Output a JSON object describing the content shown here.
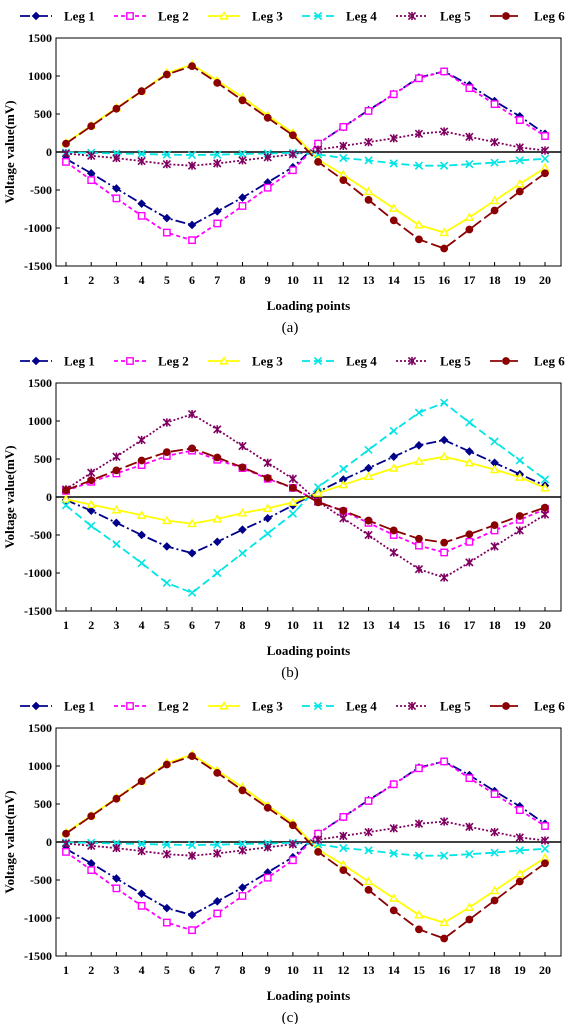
{
  "chart_data": [
    {
      "type": "line",
      "panel_label": "(a)",
      "xlabel": "Loading points",
      "ylabel": "Voltage value(mV)",
      "ylim": [
        -1500,
        1500
      ],
      "yticks": [
        -1500,
        -1000,
        -500,
        0,
        500,
        1000,
        1500
      ],
      "x": [
        1,
        2,
        3,
        4,
        5,
        6,
        7,
        8,
        9,
        10,
        11,
        12,
        13,
        14,
        15,
        16,
        17,
        18,
        19,
        20
      ],
      "grid": false,
      "legend_position": "top",
      "series": [
        {
          "name": "Leg 1",
          "color": "#00008b",
          "dash": "10,3,2,3",
          "marker": "diamond",
          "values": [
            -90,
            -280,
            -480,
            -680,
            -870,
            -960,
            -780,
            -600,
            -400,
            -200,
            110,
            330,
            550,
            760,
            980,
            1060,
            880,
            670,
            470,
            240
          ]
        },
        {
          "name": "Leg 2",
          "color": "#ff00ff",
          "dash": "4,3",
          "marker": "square",
          "values": [
            -130,
            -370,
            -610,
            -840,
            -1060,
            -1160,
            -940,
            -710,
            -470,
            -240,
            110,
            330,
            540,
            760,
            970,
            1060,
            840,
            630,
            420,
            210
          ]
        },
        {
          "name": "Leg 3",
          "color": "#ffff00",
          "dash": "",
          "marker": "triangle",
          "values": [
            120,
            350,
            580,
            800,
            1040,
            1150,
            940,
            720,
            480,
            250,
            -100,
            -300,
            -520,
            -740,
            -960,
            -1060,
            -860,
            -640,
            -420,
            -210
          ]
        },
        {
          "name": "Leg 4",
          "color": "#00e5e5",
          "dash": "8,4",
          "marker": "x",
          "values": [
            -5,
            -10,
            -20,
            -25,
            -35,
            -40,
            -35,
            -25,
            -20,
            -10,
            -30,
            -80,
            -110,
            -150,
            -180,
            -180,
            -160,
            -140,
            -110,
            -90
          ]
        },
        {
          "name": "Leg 5",
          "color": "#800060",
          "dash": "2,2",
          "marker": "star",
          "values": [
            -20,
            -50,
            -80,
            -120,
            -160,
            -180,
            -150,
            -110,
            -70,
            -30,
            30,
            80,
            130,
            180,
            240,
            270,
            200,
            130,
            60,
            20
          ]
        },
        {
          "name": "Leg 6",
          "color": "#8b0000",
          "dash": "12,4",
          "marker": "circle",
          "values": [
            110,
            340,
            570,
            800,
            1020,
            1130,
            910,
            680,
            450,
            220,
            -130,
            -370,
            -630,
            -900,
            -1150,
            -1270,
            -1020,
            -770,
            -520,
            -280
          ]
        }
      ]
    },
    {
      "type": "line",
      "panel_label": "(b)",
      "xlabel": "Loading points",
      "ylabel": "Voltage value(mV)",
      "ylim": [
        -1500,
        1500
      ],
      "yticks": [
        -1500,
        -1000,
        -500,
        0,
        500,
        1000,
        1500
      ],
      "x": [
        1,
        2,
        3,
        4,
        5,
        6,
        7,
        8,
        9,
        10,
        11,
        12,
        13,
        14,
        15,
        16,
        17,
        18,
        19,
        20
      ],
      "grid": false,
      "legend_position": "top",
      "series": [
        {
          "name": "Leg 1",
          "color": "#00008b",
          "dash": "10,3,2,3",
          "marker": "diamond",
          "values": [
            -40,
            -180,
            -340,
            -500,
            -650,
            -740,
            -590,
            -430,
            -280,
            -110,
            70,
            230,
            380,
            530,
            680,
            750,
            600,
            450,
            300,
            150
          ]
        },
        {
          "name": "Leg 2",
          "color": "#ff00ff",
          "dash": "4,3",
          "marker": "square",
          "values": [
            80,
            200,
            310,
            420,
            540,
            610,
            490,
            380,
            240,
            120,
            -60,
            -190,
            -340,
            -500,
            -640,
            -730,
            -590,
            -440,
            -300,
            -160
          ]
        },
        {
          "name": "Leg 3",
          "color": "#ffff00",
          "dash": "",
          "marker": "triangle",
          "values": [
            -30,
            -100,
            -170,
            -240,
            -310,
            -350,
            -290,
            -210,
            -150,
            -70,
            50,
            160,
            270,
            380,
            470,
            530,
            450,
            360,
            260,
            120
          ]
        },
        {
          "name": "Leg 4",
          "color": "#00e5e5",
          "dash": "8,4",
          "marker": "x",
          "values": [
            -110,
            -380,
            -620,
            -870,
            -1130,
            -1260,
            -1000,
            -740,
            -480,
            -220,
            130,
            370,
            620,
            870,
            1110,
            1240,
            980,
            730,
            480,
            230
          ]
        },
        {
          "name": "Leg 5",
          "color": "#800060",
          "dash": "2,2",
          "marker": "star",
          "values": [
            100,
            320,
            530,
            750,
            980,
            1090,
            890,
            670,
            450,
            240,
            -60,
            -280,
            -500,
            -730,
            -950,
            -1060,
            -860,
            -650,
            -440,
            -230
          ]
        },
        {
          "name": "Leg 6",
          "color": "#8b0000",
          "dash": "12,4",
          "marker": "circle",
          "values": [
            90,
            220,
            350,
            480,
            590,
            640,
            520,
            390,
            250,
            120,
            -70,
            -180,
            -310,
            -440,
            -550,
            -600,
            -490,
            -370,
            -250,
            -140
          ]
        }
      ]
    },
    {
      "type": "line",
      "panel_label": "(c)",
      "xlabel": "Loading points",
      "ylabel": "Voltage value(mV)",
      "ylim": [
        -1500,
        1500
      ],
      "yticks": [
        -1500,
        -1000,
        -500,
        0,
        500,
        1000,
        1500
      ],
      "x": [
        1,
        2,
        3,
        4,
        5,
        6,
        7,
        8,
        9,
        10,
        11,
        12,
        13,
        14,
        15,
        16,
        17,
        18,
        19,
        20
      ],
      "grid": false,
      "legend_position": "top",
      "series": [
        {
          "name": "Leg 1",
          "color": "#00008b",
          "dash": "10,3,2,3",
          "marker": "diamond",
          "values": [
            -90,
            -280,
            -480,
            -680,
            -870,
            -960,
            -780,
            -600,
            -400,
            -200,
            110,
            330,
            550,
            760,
            980,
            1060,
            880,
            670,
            470,
            240
          ]
        },
        {
          "name": "Leg 2",
          "color": "#ff00ff",
          "dash": "4,3",
          "marker": "square",
          "values": [
            -130,
            -370,
            -610,
            -840,
            -1060,
            -1160,
            -940,
            -710,
            -470,
            -240,
            110,
            330,
            540,
            760,
            970,
            1060,
            840,
            630,
            420,
            210
          ]
        },
        {
          "name": "Leg 3",
          "color": "#ffff00",
          "dash": "",
          "marker": "triangle",
          "values": [
            120,
            350,
            580,
            800,
            1040,
            1150,
            940,
            720,
            480,
            250,
            -100,
            -300,
            -520,
            -740,
            -960,
            -1060,
            -860,
            -640,
            -420,
            -210
          ]
        },
        {
          "name": "Leg 4",
          "color": "#00e5e5",
          "dash": "8,4",
          "marker": "x",
          "values": [
            -5,
            -10,
            -20,
            -25,
            -35,
            -40,
            -35,
            -25,
            -20,
            -10,
            -30,
            -80,
            -110,
            -150,
            -180,
            -180,
            -160,
            -140,
            -110,
            -90
          ]
        },
        {
          "name": "Leg 5",
          "color": "#800060",
          "dash": "2,2",
          "marker": "star",
          "values": [
            -20,
            -50,
            -80,
            -120,
            -160,
            -180,
            -150,
            -110,
            -70,
            -30,
            30,
            80,
            130,
            180,
            240,
            270,
            200,
            130,
            60,
            20
          ]
        },
        {
          "name": "Leg 6",
          "color": "#8b0000",
          "dash": "12,4",
          "marker": "circle",
          "values": [
            110,
            340,
            570,
            800,
            1020,
            1130,
            910,
            680,
            450,
            220,
            -130,
            -370,
            -630,
            -900,
            -1150,
            -1270,
            -1020,
            -770,
            -520,
            -280
          ]
        }
      ]
    }
  ]
}
